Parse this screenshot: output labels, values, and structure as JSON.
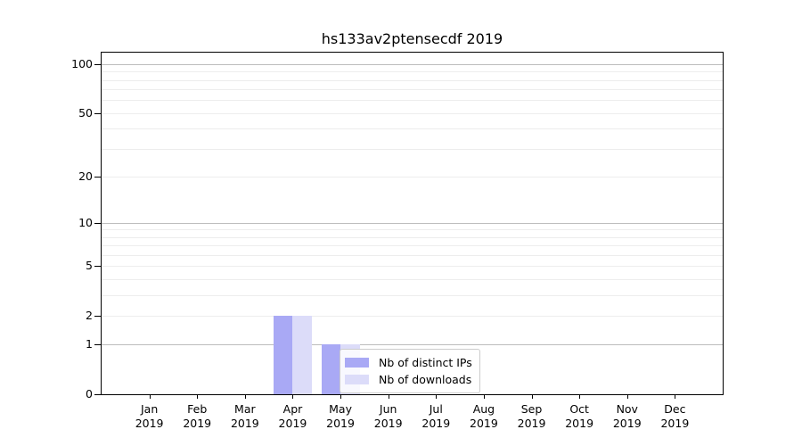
{
  "title": "hs133av2ptensecdf 2019",
  "chart_data": {
    "type": "bar",
    "title": "hs133av2ptensecdf 2019",
    "x_categories": [
      {
        "month": "Jan",
        "year": "2019"
      },
      {
        "month": "Feb",
        "year": "2019"
      },
      {
        "month": "Mar",
        "year": "2019"
      },
      {
        "month": "Apr",
        "year": "2019"
      },
      {
        "month": "May",
        "year": "2019"
      },
      {
        "month": "Jun",
        "year": "2019"
      },
      {
        "month": "Jul",
        "year": "2019"
      },
      {
        "month": "Aug",
        "year": "2019"
      },
      {
        "month": "Sep",
        "year": "2019"
      },
      {
        "month": "Oct",
        "year": "2019"
      },
      {
        "month": "Nov",
        "year": "2019"
      },
      {
        "month": "Dec",
        "year": "2019"
      }
    ],
    "series": [
      {
        "name": "Nb of distinct IPs",
        "color": "#a9a9f5",
        "values": [
          0,
          0,
          0,
          2,
          1,
          0,
          0,
          0,
          0,
          0,
          0,
          0
        ]
      },
      {
        "name": "Nb of downloads",
        "color": "#dcdcf9",
        "values": [
          0,
          0,
          0,
          2,
          1,
          0,
          0,
          0,
          0,
          0,
          0,
          0
        ]
      }
    ],
    "y_scale": "log1p",
    "ylim": [
      0,
      119
    ],
    "y_ticks": [
      0,
      1,
      2,
      5,
      10,
      20,
      50,
      100
    ],
    "y_major_gridlines": [
      1,
      10,
      100
    ],
    "y_minor_gridlines": [
      2,
      3,
      4,
      5,
      6,
      7,
      8,
      9,
      20,
      30,
      40,
      50,
      60,
      70,
      80,
      90
    ],
    "grid": true,
    "legend_position": "lower right inside plot"
  },
  "colors": {
    "bar_distinct_ips": "#a9a9f5",
    "bar_downloads": "#dcdcf9",
    "grid_major": "#bdbdbd",
    "grid_minor": "#ededed",
    "axis": "#000000",
    "background": "#ffffff"
  }
}
